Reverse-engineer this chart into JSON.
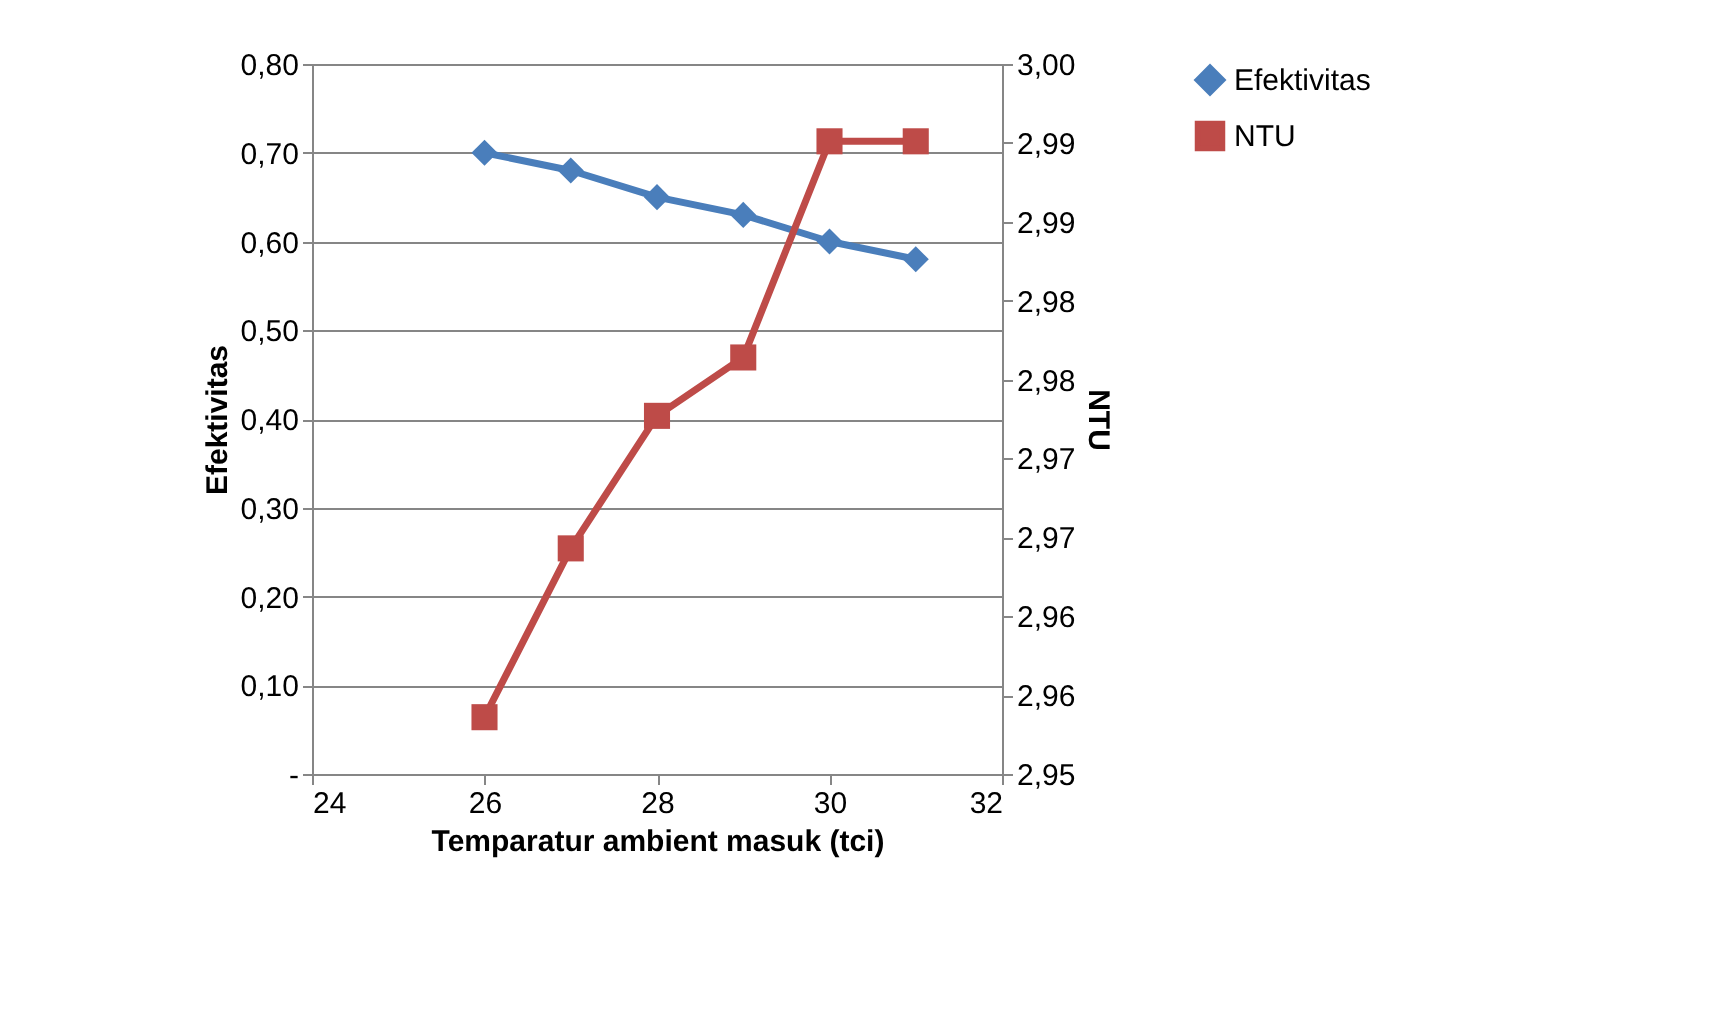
{
  "chart_data": {
    "type": "line",
    "xlabel": "Temparatur ambient masuk (tci)",
    "ylabel": "Efektivitas",
    "y2label": "NTU",
    "x": [
      26,
      27,
      28,
      29,
      30,
      31
    ],
    "xlim": [
      24,
      32
    ],
    "xticks": [
      24,
      26,
      28,
      30,
      32
    ],
    "ylim": [
      0,
      0.8
    ],
    "yticks": [
      {
        "value": 0,
        "label": "-"
      },
      {
        "value": 0.1,
        "label": "0,10"
      },
      {
        "value": 0.2,
        "label": "0,20"
      },
      {
        "value": 0.3,
        "label": "0,30"
      },
      {
        "value": 0.4,
        "label": "0,40"
      },
      {
        "value": 0.5,
        "label": "0,50"
      },
      {
        "value": 0.6,
        "label": "0,60"
      },
      {
        "value": 0.7,
        "label": "0,70"
      },
      {
        "value": 0.8,
        "label": "0,80"
      }
    ],
    "y2lim": [
      2.955,
      3.0
    ],
    "y2ticks": [
      {
        "value": 2.955,
        "label": "2,95"
      },
      {
        "value": 2.96,
        "label": "2,96"
      },
      {
        "value": 2.965,
        "label": "2,96"
      },
      {
        "value": 2.97,
        "label": "2,97"
      },
      {
        "value": 2.975,
        "label": "2,97"
      },
      {
        "value": 2.98,
        "label": "2,98"
      },
      {
        "value": 2.985,
        "label": "2,98"
      },
      {
        "value": 2.99,
        "label": "2,99"
      },
      {
        "value": 2.995,
        "label": "2,99"
      },
      {
        "value": 3.0,
        "label": "3,00"
      }
    ],
    "grid": "y",
    "legend": "right",
    "series": [
      {
        "name": "Efektivitas",
        "color": "#4a7ebb",
        "marker": "diamond",
        "values": [
          0.7,
          0.68,
          0.65,
          0.63,
          0.6,
          0.58
        ]
      },
      {
        "name": "NTU",
        "color": "#be4b48",
        "marker": "square",
        "axis": "y2",
        "values": [
          2.9586,
          2.9693,
          2.9777,
          2.9814,
          2.9951,
          2.9951
        ]
      }
    ]
  }
}
